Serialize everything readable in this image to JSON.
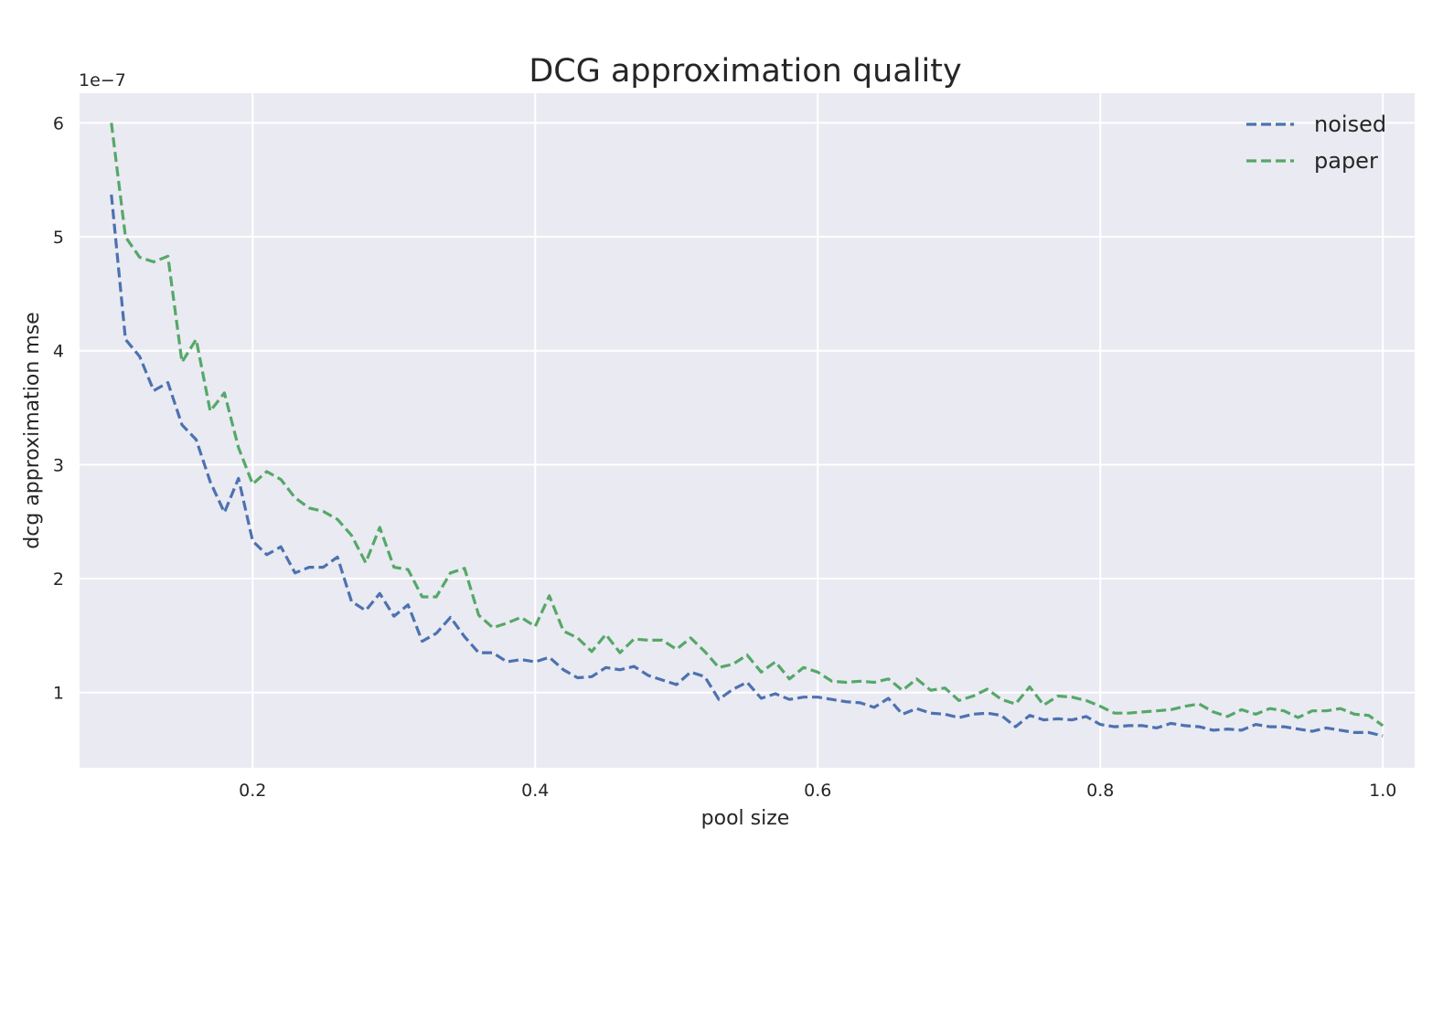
{
  "chart_data": {
    "type": "line",
    "title": "DCG approximation quality",
    "xlabel": "pool size",
    "ylabel": "dcg approximation mse",
    "y_offset_label": "1e−7",
    "xlim": [
      0.0775,
      1.0225
    ],
    "ylim": [
      0.34,
      6.26
    ],
    "y_scale_note": "values in units of 1e-7",
    "x_ticks": [
      0.2,
      0.4,
      0.6,
      0.8,
      1.0
    ],
    "x_tick_labels": [
      "0.2",
      "0.4",
      "0.6",
      "0.8",
      "1.0"
    ],
    "y_ticks": [
      1,
      2,
      3,
      4,
      5,
      6
    ],
    "y_tick_labels": [
      "1",
      "2",
      "3",
      "4",
      "5",
      "6"
    ],
    "grid": true,
    "legend_position": "top-right",
    "colors": {
      "noised": "#4c72b0",
      "paper": "#55a868",
      "plot_bg": "#eaeaf2"
    },
    "x": [
      0.1,
      0.11,
      0.12,
      0.13,
      0.14,
      0.15,
      0.16,
      0.17,
      0.18,
      0.19,
      0.2,
      0.21,
      0.22,
      0.23,
      0.24,
      0.25,
      0.26,
      0.27,
      0.28,
      0.29,
      0.3,
      0.31,
      0.32,
      0.33,
      0.34,
      0.35,
      0.36,
      0.37,
      0.38,
      0.39,
      0.4,
      0.41,
      0.42,
      0.43,
      0.44,
      0.45,
      0.46,
      0.47,
      0.48,
      0.49,
      0.5,
      0.51,
      0.52,
      0.53,
      0.54,
      0.55,
      0.56,
      0.57,
      0.58,
      0.59,
      0.6,
      0.61,
      0.62,
      0.63,
      0.64,
      0.65,
      0.66,
      0.67,
      0.68,
      0.69,
      0.7,
      0.71,
      0.72,
      0.73,
      0.74,
      0.75,
      0.76,
      0.77,
      0.78,
      0.79,
      0.8,
      0.81,
      0.82,
      0.83,
      0.84,
      0.85,
      0.86,
      0.87,
      0.88,
      0.89,
      0.9,
      0.91,
      0.92,
      0.93,
      0.94,
      0.95,
      0.96,
      0.97,
      0.98,
      0.99,
      1.0
    ],
    "series": [
      {
        "name": "noised",
        "values": [
          5.37,
          4.1,
          3.95,
          3.65,
          3.72,
          3.35,
          3.22,
          2.85,
          2.58,
          2.88,
          2.33,
          2.21,
          2.28,
          2.05,
          2.1,
          2.1,
          2.19,
          1.8,
          1.72,
          1.87,
          1.67,
          1.77,
          1.45,
          1.52,
          1.66,
          1.49,
          1.35,
          1.35,
          1.27,
          1.29,
          1.27,
          1.31,
          1.2,
          1.13,
          1.14,
          1.22,
          1.2,
          1.23,
          1.15,
          1.11,
          1.07,
          1.18,
          1.14,
          0.94,
          1.03,
          1.09,
          0.95,
          0.99,
          0.94,
          0.96,
          0.96,
          0.94,
          0.92,
          0.91,
          0.87,
          0.95,
          0.81,
          0.86,
          0.82,
          0.81,
          0.78,
          0.81,
          0.82,
          0.8,
          0.7,
          0.8,
          0.76,
          0.77,
          0.76,
          0.79,
          0.72,
          0.7,
          0.71,
          0.71,
          0.69,
          0.73,
          0.71,
          0.7,
          0.67,
          0.68,
          0.67,
          0.72,
          0.7,
          0.7,
          0.68,
          0.66,
          0.69,
          0.67,
          0.65,
          0.65,
          0.62
        ]
      },
      {
        "name": "paper",
        "values": [
          6.0,
          5.0,
          4.82,
          4.78,
          4.83,
          3.9,
          4.1,
          3.47,
          3.63,
          3.15,
          2.83,
          2.94,
          2.87,
          2.71,
          2.62,
          2.59,
          2.52,
          2.38,
          2.14,
          2.45,
          2.1,
          2.08,
          1.84,
          1.84,
          2.05,
          2.09,
          1.68,
          1.57,
          1.61,
          1.66,
          1.58,
          1.85,
          1.54,
          1.48,
          1.36,
          1.51,
          1.35,
          1.47,
          1.46,
          1.46,
          1.38,
          1.48,
          1.36,
          1.22,
          1.25,
          1.33,
          1.18,
          1.27,
          1.12,
          1.22,
          1.18,
          1.1,
          1.09,
          1.1,
          1.09,
          1.12,
          1.02,
          1.12,
          1.02,
          1.04,
          0.93,
          0.97,
          1.03,
          0.94,
          0.9,
          1.05,
          0.89,
          0.97,
          0.96,
          0.93,
          0.88,
          0.82,
          0.82,
          0.83,
          0.84,
          0.85,
          0.88,
          0.9,
          0.83,
          0.79,
          0.85,
          0.81,
          0.86,
          0.84,
          0.78,
          0.84,
          0.84,
          0.86,
          0.81,
          0.8,
          0.71
        ]
      }
    ]
  }
}
